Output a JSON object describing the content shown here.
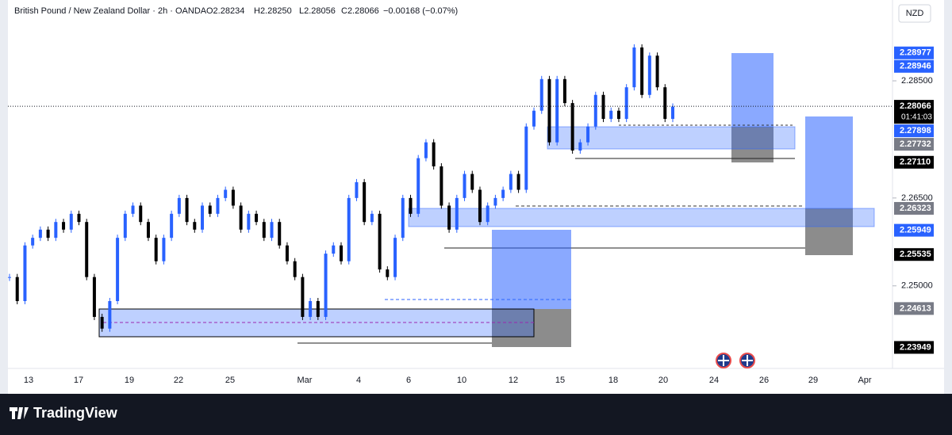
{
  "header": {
    "symbol": "British Pound / New Zealand Dollar · 2h · OANDA",
    "open": "O2.28234",
    "high": "H2.28250",
    "low": "L2.28056",
    "close": "C2.28066",
    "change": "−0.00168 (−0.07%)"
  },
  "currency": "NZD",
  "countdown": "01:41:03",
  "brand": "TradingView",
  "chart_data": {
    "type": "candlestick",
    "ylim": [
      2.2359,
      2.2988
    ],
    "yticks": [
      {
        "value": 2.285,
        "label": "2.28500"
      },
      {
        "value": 2.265,
        "label": "2.26500"
      },
      {
        "value": 2.25,
        "label": "2.25000"
      }
    ],
    "categories": [
      "13",
      "17",
      "19",
      "22",
      "25",
      "Mar",
      "4",
      "6",
      "10",
      "12",
      "15",
      "18",
      "20",
      "24",
      "26",
      "29",
      "Apr"
    ],
    "up_color": "#2962ff",
    "down_color": "#000000",
    "closes": [
      2.2515,
      2.2474,
      2.2569,
      2.2582,
      2.2596,
      2.2582,
      2.2609,
      2.2596,
      2.2623,
      2.2609,
      2.2515,
      2.2447,
      2.2427,
      2.2474,
      2.2582,
      2.2623,
      2.2637,
      2.2609,
      2.2582,
      2.2542,
      2.2582,
      2.2623,
      2.265,
      2.2609,
      2.2596,
      2.2637,
      2.2623,
      2.265,
      2.2664,
      2.2637,
      2.2596,
      2.2623,
      2.2609,
      2.2582,
      2.2609,
      2.2569,
      2.2542,
      2.2515,
      2.2447,
      2.2474,
      2.2447,
      2.2555,
      2.2569,
      2.2542,
      2.265,
      2.2677,
      2.2609,
      2.2623,
      2.2528,
      2.2515,
      2.2582,
      2.265,
      2.2623,
      2.2718,
      2.2745,
      2.2704,
      2.2637,
      2.2596,
      2.265,
      2.2691,
      2.2664,
      2.2609,
      2.2637,
      2.265,
      2.2664,
      2.2691,
      2.2664,
      2.2772,
      2.2799,
      2.2853,
      2.2745,
      2.2853,
      2.2812,
      2.2731,
      2.2745,
      2.2772,
      2.2826,
      2.2785,
      2.2799,
      2.2785,
      2.2839,
      2.2907,
      2.2826,
      2.2893,
      2.2839,
      2.2785,
      2.2806
    ],
    "price_labels": [
      {
        "value": 2.28977,
        "label": "2.28977",
        "kind": "blue"
      },
      {
        "value": 2.28946,
        "label": "2.28946",
        "kind": "blue"
      },
      {
        "value": 2.28066,
        "label": "2.28066",
        "kind": "last"
      },
      {
        "value": 2.27898,
        "label": "2.27898",
        "kind": "blue"
      },
      {
        "value": 2.27732,
        "label": "2.27732",
        "kind": "grey"
      },
      {
        "value": 2.2711,
        "label": "2.27110",
        "kind": "black"
      },
      {
        "value": 2.26323,
        "label": "2.26323",
        "kind": "grey"
      },
      {
        "value": 2.25949,
        "label": "2.25949",
        "kind": "blue"
      },
      {
        "value": 2.25535,
        "label": "2.25535",
        "kind": "black"
      },
      {
        "value": 2.24613,
        "label": "2.24613",
        "kind": "grey"
      },
      {
        "value": 2.23949,
        "label": "2.23949",
        "kind": "black"
      }
    ]
  }
}
